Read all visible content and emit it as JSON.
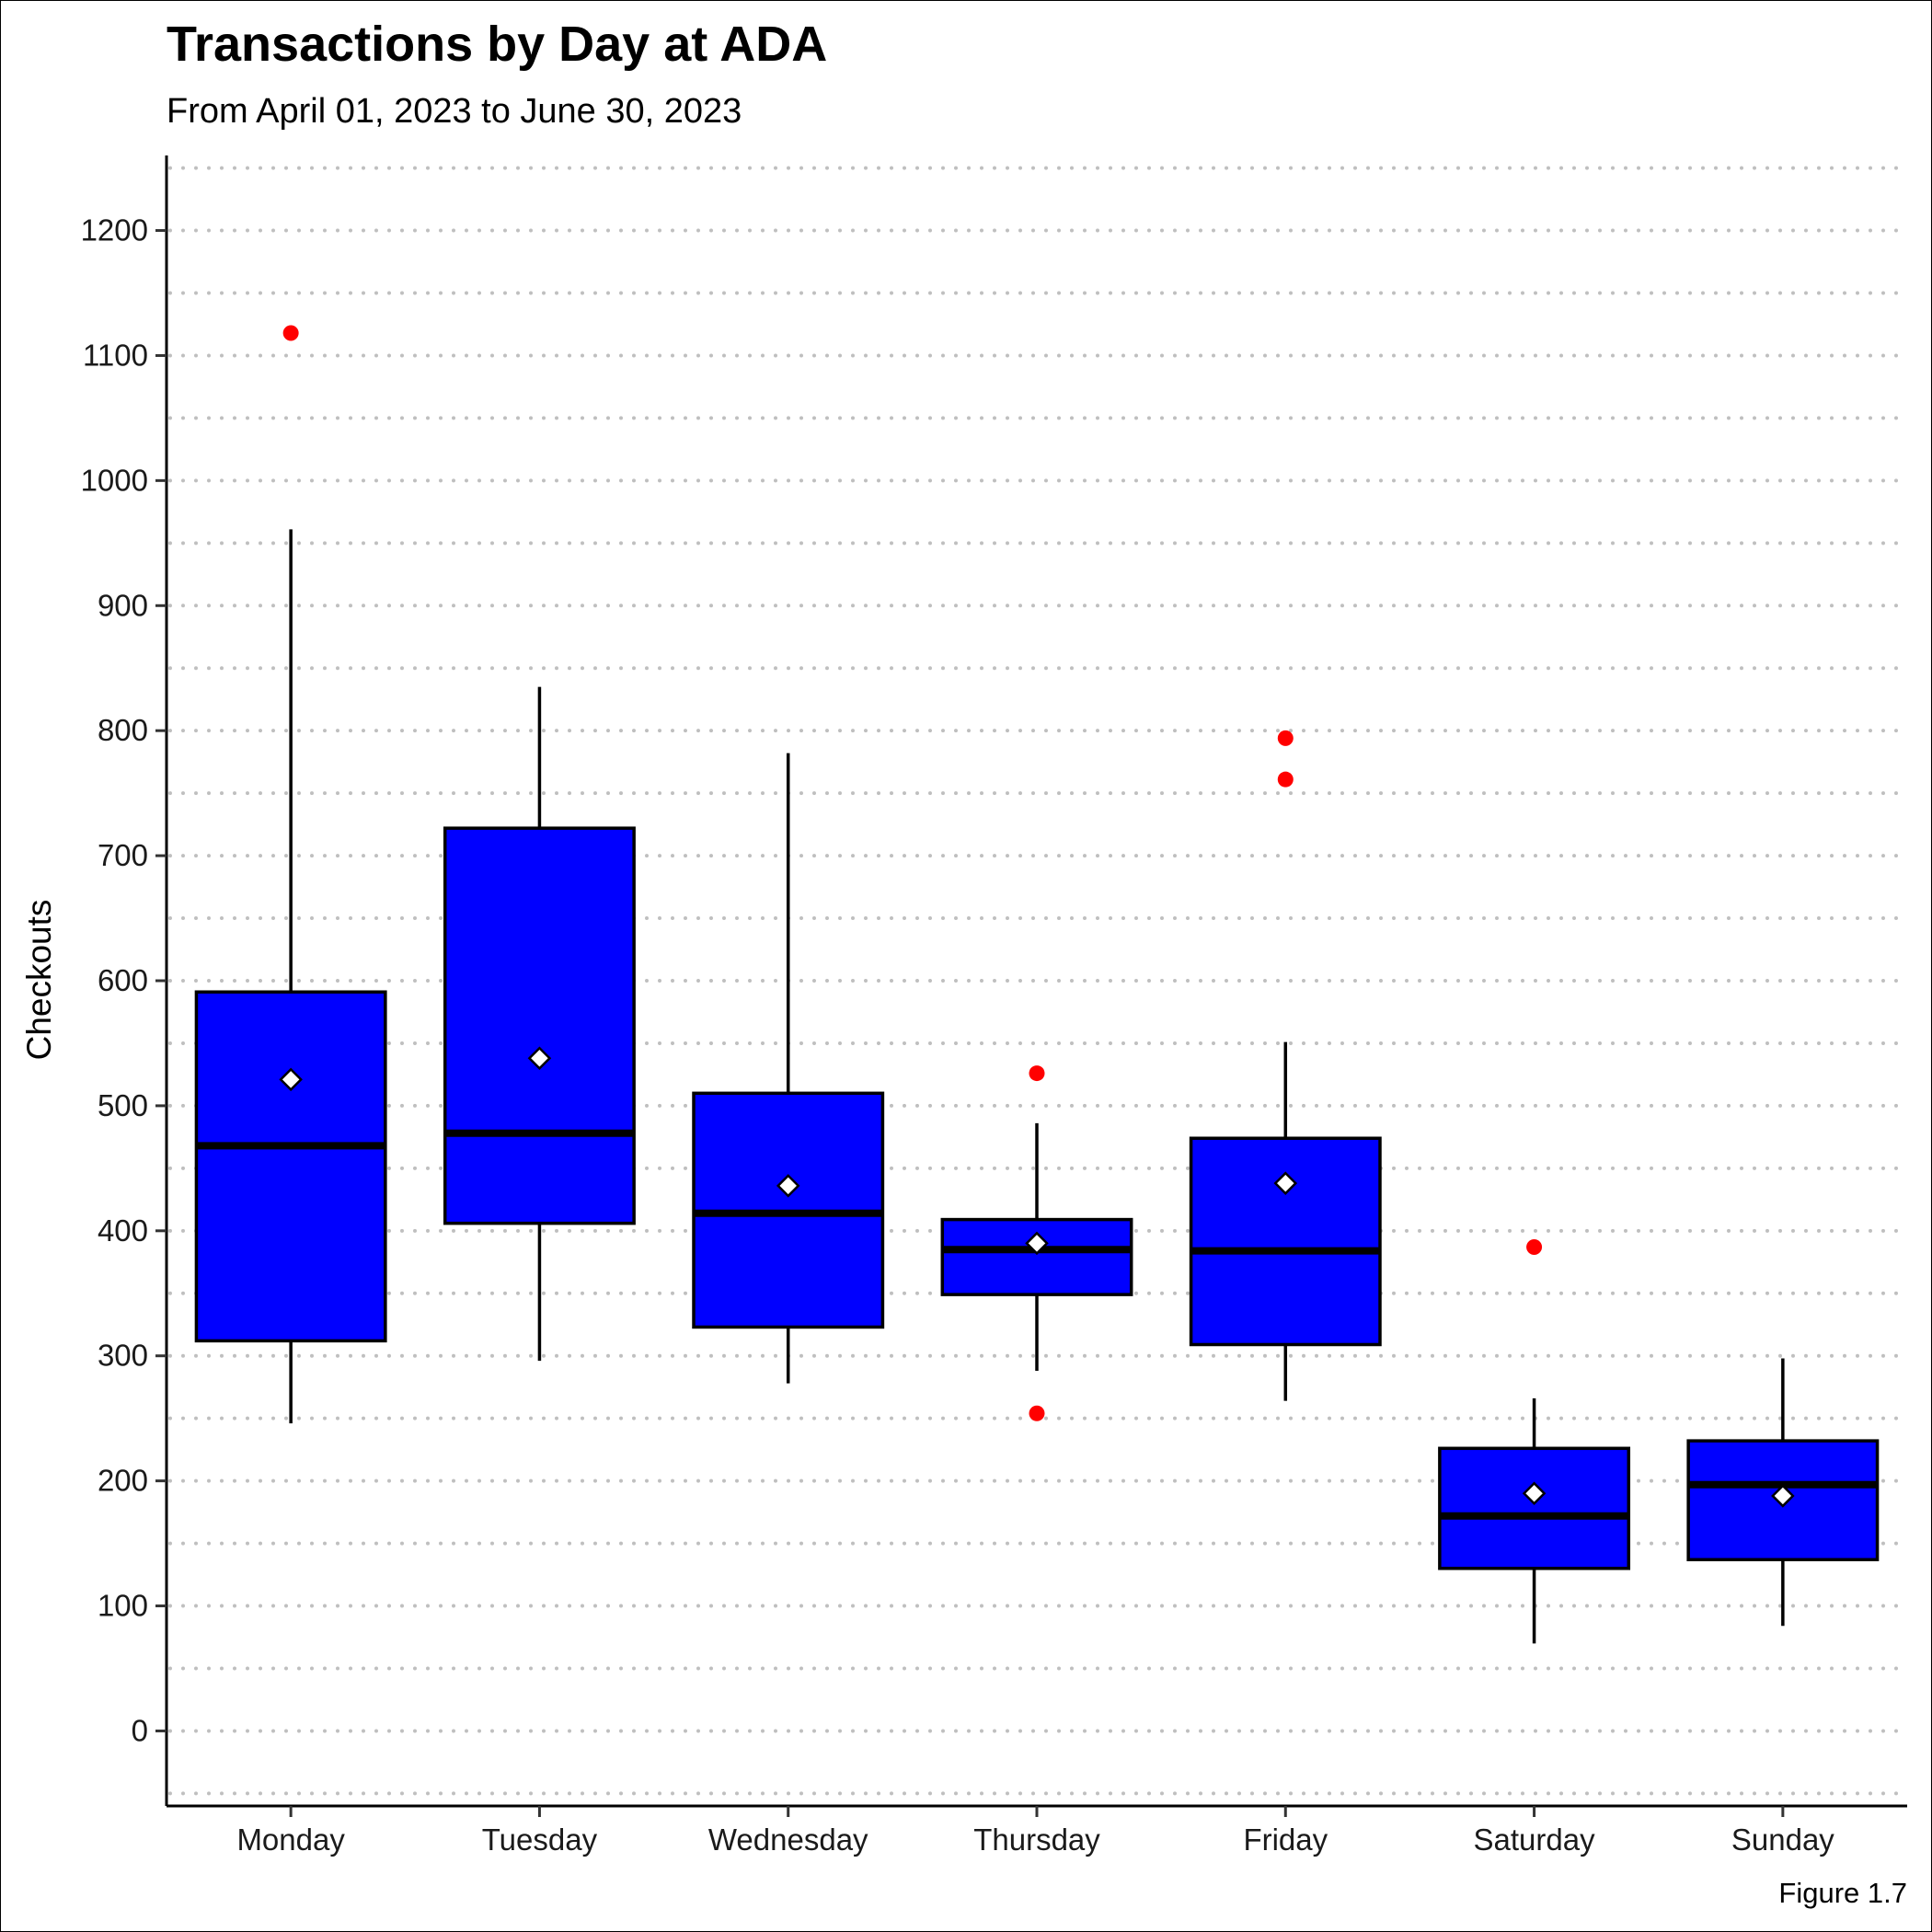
{
  "chart_data": {
    "type": "box",
    "title": "Transactions by Day at ADA",
    "subtitle": "From April 01, 2023 to June 30, 2023",
    "ylabel": "Checkouts",
    "xlabel": "",
    "caption": "Figure 1.7",
    "ylim": [
      -60,
      1260
    ],
    "yticks": [
      0,
      100,
      200,
      300,
      400,
      500,
      600,
      700,
      800,
      900,
      1000,
      1100,
      1200
    ],
    "grid": {
      "horizontal": true,
      "style": "dotted",
      "minor_step": 50
    },
    "legend": "none",
    "colors": {
      "box_fill": "#0000ff",
      "outlier": "#ff0000",
      "mean_marker": "#ffffff",
      "grid": "#bfbfbf"
    },
    "categories": [
      "Monday",
      "Tuesday",
      "Wednesday",
      "Thursday",
      "Friday",
      "Saturday",
      "Sunday"
    ],
    "boxes": [
      {
        "category": "Monday",
        "whisker_low": 246,
        "q1": 312,
        "median": 468,
        "q3": 591,
        "whisker_high": 961,
        "mean": 521,
        "outliers": [
          1118
        ]
      },
      {
        "category": "Tuesday",
        "whisker_low": 296,
        "q1": 406,
        "median": 478,
        "q3": 722,
        "whisker_high": 835,
        "mean": 538,
        "outliers": []
      },
      {
        "category": "Wednesday",
        "whisker_low": 278,
        "q1": 323,
        "median": 414,
        "q3": 510,
        "whisker_high": 782,
        "mean": 436,
        "outliers": []
      },
      {
        "category": "Thursday",
        "whisker_low": 288,
        "q1": 349,
        "median": 385,
        "q3": 409,
        "whisker_high": 486,
        "mean": 390,
        "outliers": [
          526,
          254
        ]
      },
      {
        "category": "Friday",
        "whisker_low": 264,
        "q1": 309,
        "median": 384,
        "q3": 474,
        "whisker_high": 551,
        "mean": 438,
        "outliers": [
          794,
          761
        ]
      },
      {
        "category": "Saturday",
        "whisker_low": 70,
        "q1": 130,
        "median": 172,
        "q3": 226,
        "whisker_high": 266,
        "mean": 190,
        "outliers": [
          387
        ]
      },
      {
        "category": "Sunday",
        "whisker_low": 84,
        "q1": 137,
        "median": 197,
        "q3": 232,
        "whisker_high": 298,
        "mean": 188,
        "outliers": []
      }
    ]
  }
}
